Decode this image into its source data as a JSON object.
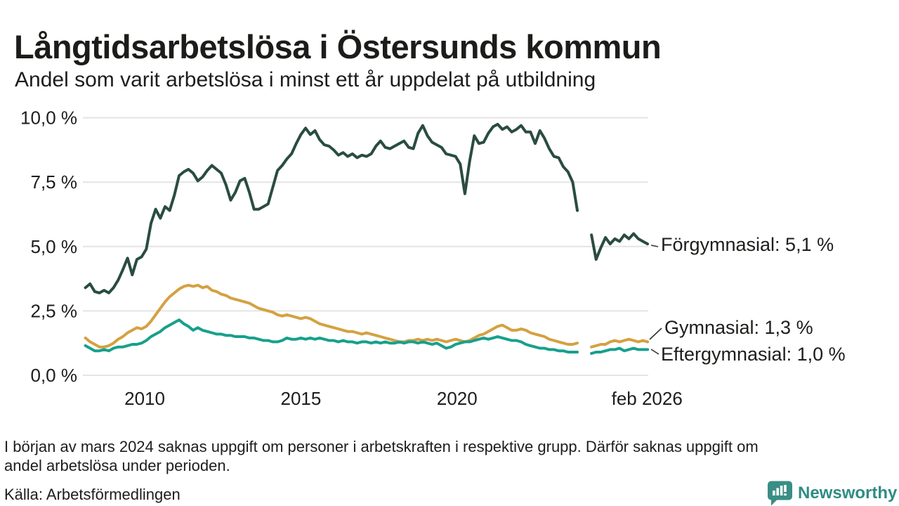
{
  "header": {
    "title": "Långtidsarbetslösa i Östersunds kommun",
    "subtitle": "Andel som varit arbetslösa i minst ett år uppdelat på utbildning"
  },
  "footnote": {
    "line1": "I början av mars 2024 saknas uppgift om personer i arbetskraften i respektive grupp. Därför saknas uppgift om",
    "line2": "andel arbetslösa under perioden."
  },
  "source": "Källa: Arbetsförmedlingen",
  "branding": {
    "name": "Newsworthy",
    "logo_icon": "bar-chart-speech-bubble-icon",
    "logo_color": "#3a8e85",
    "text_color": "#2f8c84"
  },
  "colors": {
    "text": "#1d1d1b",
    "grid": "#e4e4e2",
    "leader": "#333333"
  },
  "chart_data": {
    "type": "line",
    "title": "Långtidsarbetslösa i Östersunds kommun",
    "subtitle": "Andel som varit arbetslösa i minst ett år uppdelat på utbildning",
    "xlabel": "",
    "ylabel": "",
    "xlim": [
      2008.02,
      2026.12
    ],
    "ylim": [
      0,
      10
    ],
    "grid": "horizontal",
    "legend_position": "end-of-line-labels",
    "gap_note": "values missing early 2024 for all series",
    "yticks": {
      "values": [
        0,
        2.5,
        5,
        7.5,
        10
      ],
      "labels": [
        "0,0 %",
        "2,5 %",
        "5,0 %",
        "7,5 %",
        "10,0 %"
      ]
    },
    "xticks": [
      {
        "x": 2010,
        "label": "2010"
      },
      {
        "x": 2015,
        "label": "2015"
      },
      {
        "x": 2020,
        "label": "2020"
      },
      {
        "x": 2026.08,
        "label": "feb 2026"
      }
    ],
    "x": [
      2008.1,
      2008.25,
      2008.4,
      2008.55,
      2008.7,
      2008.85,
      2009,
      2009.15,
      2009.3,
      2009.45,
      2009.6,
      2009.75,
      2009.9,
      2010.05,
      2010.2,
      2010.35,
      2010.5,
      2010.65,
      2010.8,
      2010.95,
      2011.1,
      2011.25,
      2011.4,
      2011.55,
      2011.7,
      2011.85,
      2012,
      2012.15,
      2012.3,
      2012.45,
      2012.6,
      2012.75,
      2012.9,
      2013.05,
      2013.2,
      2013.35,
      2013.5,
      2013.65,
      2013.8,
      2013.95,
      2014.1,
      2014.25,
      2014.4,
      2014.55,
      2014.7,
      2014.85,
      2015,
      2015.15,
      2015.3,
      2015.45,
      2015.6,
      2015.75,
      2015.9,
      2016.05,
      2016.2,
      2016.35,
      2016.5,
      2016.65,
      2016.8,
      2016.95,
      2017.1,
      2017.25,
      2017.4,
      2017.55,
      2017.7,
      2017.85,
      2018,
      2018.15,
      2018.3,
      2018.45,
      2018.6,
      2018.75,
      2018.9,
      2019.05,
      2019.2,
      2019.35,
      2019.5,
      2019.65,
      2019.8,
      2019.95,
      2020.1,
      2020.25,
      2020.4,
      2020.55,
      2020.7,
      2020.85,
      2021,
      2021.15,
      2021.3,
      2021.45,
      2021.6,
      2021.75,
      2021.9,
      2022.05,
      2022.2,
      2022.35,
      2022.5,
      2022.65,
      2022.8,
      2022.95,
      2023.1,
      2023.25,
      2023.4,
      2023.55,
      2023.7,
      2023.85,
      2024,
      2024.15,
      2024.3,
      2024.45,
      2024.6,
      2024.75,
      2024.9,
      2025.05,
      2025.2,
      2025.35,
      2025.5,
      2025.65,
      2025.8,
      2025.95,
      2026.1
    ],
    "series": [
      {
        "name": "Förgymnasial",
        "key": "forgymnasial",
        "end_label": "Förgymnasial: 5,1 %",
        "end_value": 5.1,
        "color": "#2a4c41",
        "values": [
          3.4,
          3.55,
          3.25,
          3.2,
          3.3,
          3.2,
          3.4,
          3.7,
          4.1,
          4.55,
          3.9,
          4.5,
          4.6,
          4.9,
          5.9,
          6.45,
          6.1,
          6.55,
          6.4,
          7.0,
          7.75,
          7.9,
          8.0,
          7.85,
          7.55,
          7.7,
          7.95,
          8.15,
          8.0,
          7.85,
          7.4,
          6.8,
          7.1,
          7.55,
          7.65,
          7.1,
          6.45,
          6.45,
          6.55,
          6.65,
          7.3,
          7.95,
          8.15,
          8.4,
          8.6,
          9.0,
          9.35,
          9.6,
          9.35,
          9.5,
          9.15,
          8.95,
          8.9,
          8.75,
          8.55,
          8.65,
          8.5,
          8.6,
          8.45,
          8.55,
          8.5,
          8.6,
          8.9,
          9.1,
          8.85,
          8.8,
          8.9,
          9.0,
          9.1,
          8.85,
          8.8,
          9.4,
          9.7,
          9.3,
          9.05,
          8.95,
          8.85,
          8.6,
          8.55,
          8.5,
          8.2,
          7.05,
          8.3,
          9.3,
          9.0,
          9.05,
          9.4,
          9.65,
          9.75,
          9.55,
          9.65,
          9.45,
          9.55,
          9.7,
          9.45,
          9.45,
          9.0,
          9.5,
          9.2,
          8.8,
          8.5,
          8.45,
          8.1,
          7.9,
          7.5,
          6.4,
          null,
          null,
          5.45,
          4.5,
          4.95,
          5.35,
          5.1,
          5.3,
          5.2,
          5.45,
          5.3,
          5.5,
          5.3,
          5.2,
          5.1
        ]
      },
      {
        "name": "Gymnasial",
        "key": "gymnasial",
        "end_label": "Gymnasial: 1,3 %",
        "end_value": 1.3,
        "color": "#d4a142",
        "values": [
          1.45,
          1.3,
          1.2,
          1.1,
          1.1,
          1.15,
          1.25,
          1.4,
          1.5,
          1.65,
          1.75,
          1.85,
          1.8,
          1.9,
          2.1,
          2.35,
          2.6,
          2.85,
          3.05,
          3.2,
          3.35,
          3.45,
          3.5,
          3.45,
          3.5,
          3.4,
          3.45,
          3.3,
          3.25,
          3.15,
          3.1,
          3.0,
          2.95,
          2.9,
          2.85,
          2.8,
          2.7,
          2.6,
          2.55,
          2.5,
          2.45,
          2.35,
          2.3,
          2.35,
          2.3,
          2.25,
          2.2,
          2.25,
          2.2,
          2.1,
          2.0,
          1.95,
          1.9,
          1.85,
          1.8,
          1.75,
          1.7,
          1.7,
          1.65,
          1.6,
          1.65,
          1.6,
          1.55,
          1.5,
          1.45,
          1.4,
          1.35,
          1.3,
          1.3,
          1.35,
          1.35,
          1.4,
          1.35,
          1.4,
          1.35,
          1.4,
          1.35,
          1.3,
          1.35,
          1.4,
          1.35,
          1.3,
          1.35,
          1.45,
          1.55,
          1.6,
          1.7,
          1.8,
          1.9,
          1.95,
          1.85,
          1.75,
          1.75,
          1.8,
          1.75,
          1.65,
          1.6,
          1.55,
          1.5,
          1.4,
          1.35,
          1.3,
          1.25,
          1.2,
          1.2,
          1.25,
          null,
          null,
          1.1,
          1.15,
          1.2,
          1.2,
          1.3,
          1.35,
          1.3,
          1.35,
          1.4,
          1.35,
          1.3,
          1.35,
          1.3
        ]
      },
      {
        "name": "Eftergymnasial",
        "key": "eftergymnasial",
        "end_label": "Eftergymnasial: 1,0 %",
        "end_value": 1.0,
        "color": "#17a08c",
        "values": [
          1.15,
          1.05,
          0.95,
          0.95,
          1.0,
          0.95,
          1.05,
          1.1,
          1.1,
          1.15,
          1.2,
          1.2,
          1.25,
          1.35,
          1.5,
          1.6,
          1.7,
          1.85,
          1.95,
          2.05,
          2.15,
          2.0,
          1.9,
          1.75,
          1.85,
          1.75,
          1.7,
          1.65,
          1.6,
          1.6,
          1.55,
          1.55,
          1.5,
          1.5,
          1.5,
          1.45,
          1.45,
          1.4,
          1.35,
          1.35,
          1.3,
          1.3,
          1.35,
          1.45,
          1.4,
          1.4,
          1.45,
          1.4,
          1.45,
          1.4,
          1.45,
          1.4,
          1.35,
          1.35,
          1.3,
          1.35,
          1.3,
          1.3,
          1.25,
          1.3,
          1.3,
          1.25,
          1.3,
          1.25,
          1.3,
          1.25,
          1.25,
          1.3,
          1.25,
          1.3,
          1.3,
          1.25,
          1.3,
          1.25,
          1.2,
          1.25,
          1.15,
          1.05,
          1.1,
          1.2,
          1.25,
          1.3,
          1.3,
          1.35,
          1.4,
          1.45,
          1.4,
          1.45,
          1.5,
          1.45,
          1.4,
          1.35,
          1.35,
          1.3,
          1.2,
          1.15,
          1.1,
          1.05,
          1.05,
          1.0,
          1.0,
          0.95,
          0.95,
          0.9,
          0.9,
          0.9,
          null,
          null,
          0.85,
          0.9,
          0.9,
          0.95,
          1.0,
          1.0,
          1.05,
          0.95,
          1.0,
          1.05,
          1.0,
          1.0,
          1.0
        ]
      }
    ]
  }
}
